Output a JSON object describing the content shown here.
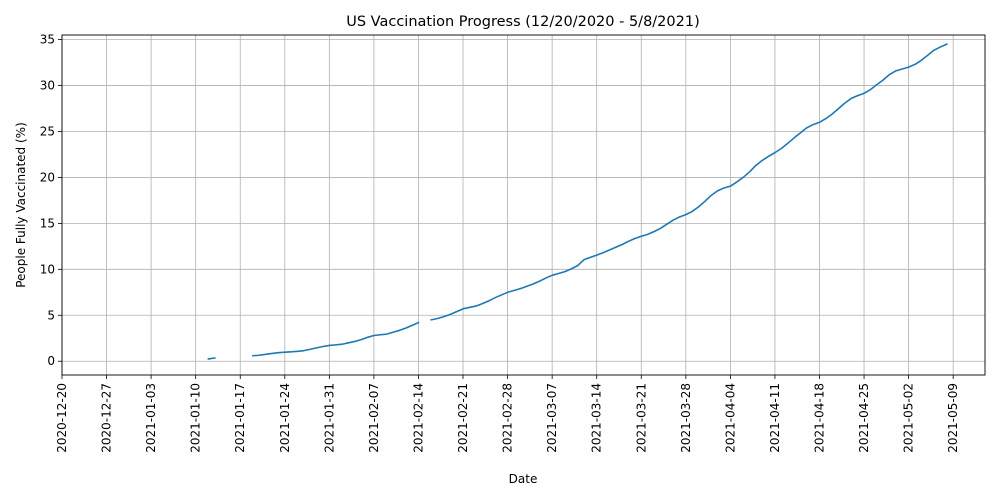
{
  "chart_data": {
    "type": "line",
    "title": "US Vaccination Progress (12/20/2020 - 5/8/2021)",
    "xlabel": "Date",
    "ylabel": "People Fully Vaccinated (%)",
    "xlim": [
      "2020-12-20",
      "2021-05-14"
    ],
    "ylim": [
      -1.5,
      35.5
    ],
    "grid": true,
    "line_color": "#1f77b4",
    "x_ticks": [
      "2020-12-20",
      "2020-12-27",
      "2021-01-03",
      "2021-01-10",
      "2021-01-17",
      "2021-01-24",
      "2021-01-31",
      "2021-02-07",
      "2021-02-14",
      "2021-02-21",
      "2021-02-28",
      "2021-03-07",
      "2021-03-14",
      "2021-03-21",
      "2021-03-28",
      "2021-04-04",
      "2021-04-11",
      "2021-04-18",
      "2021-04-25",
      "2021-05-02",
      "2021-05-09"
    ],
    "y_ticks": [
      0,
      5,
      10,
      15,
      20,
      25,
      30,
      35
    ],
    "series": [
      {
        "segments": [
          {
            "x": [
              "2021-01-12",
              "2021-01-13"
            ],
            "y": [
              0.25,
              0.35
            ]
          },
          {
            "x": [
              "2021-01-19",
              "2021-01-20",
              "2021-01-21",
              "2021-01-22",
              "2021-01-23",
              "2021-01-24",
              "2021-01-25",
              "2021-01-26",
              "2021-01-27",
              "2021-01-28",
              "2021-01-29",
              "2021-01-30",
              "2021-01-31",
              "2021-02-01",
              "2021-02-02",
              "2021-02-03",
              "2021-02-04",
              "2021-02-05",
              "2021-02-06",
              "2021-02-07",
              "2021-02-08",
              "2021-02-09",
              "2021-02-10",
              "2021-02-11",
              "2021-02-12",
              "2021-02-13",
              "2021-02-14"
            ],
            "y": [
              0.6,
              0.65,
              0.75,
              0.85,
              0.93,
              0.98,
              1.02,
              1.08,
              1.15,
              1.3,
              1.45,
              1.6,
              1.72,
              1.78,
              1.85,
              2.0,
              2.15,
              2.35,
              2.6,
              2.8,
              2.88,
              2.95,
              3.15,
              3.35,
              3.6,
              3.9,
              4.2
            ]
          },
          {
            "x": [
              "2021-02-16",
              "2021-02-17",
              "2021-02-18",
              "2021-02-19",
              "2021-02-20",
              "2021-02-21",
              "2021-02-22",
              "2021-02-23",
              "2021-02-24",
              "2021-02-25",
              "2021-02-26",
              "2021-02-27",
              "2021-02-28",
              "2021-03-01",
              "2021-03-02",
              "2021-03-03",
              "2021-03-04",
              "2021-03-05",
              "2021-03-06",
              "2021-03-07",
              "2021-03-08",
              "2021-03-09",
              "2021-03-10",
              "2021-03-11",
              "2021-03-12",
              "2021-03-13",
              "2021-03-14",
              "2021-03-15",
              "2021-03-16",
              "2021-03-17",
              "2021-03-18",
              "2021-03-19",
              "2021-03-20",
              "2021-03-21",
              "2021-03-22",
              "2021-03-23",
              "2021-03-24",
              "2021-03-25",
              "2021-03-26",
              "2021-03-27",
              "2021-03-28",
              "2021-03-29",
              "2021-03-30",
              "2021-03-31",
              "2021-04-01",
              "2021-04-02",
              "2021-04-03",
              "2021-04-04",
              "2021-04-05",
              "2021-04-06",
              "2021-04-07",
              "2021-04-08",
              "2021-04-09",
              "2021-04-10",
              "2021-04-11",
              "2021-04-12",
              "2021-04-13",
              "2021-04-14",
              "2021-04-15",
              "2021-04-16",
              "2021-04-17",
              "2021-04-18",
              "2021-04-19",
              "2021-04-20",
              "2021-04-21",
              "2021-04-22",
              "2021-04-23",
              "2021-04-24",
              "2021-04-25",
              "2021-04-26",
              "2021-04-27",
              "2021-04-28",
              "2021-04-29",
              "2021-04-30",
              "2021-05-01",
              "2021-05-02",
              "2021-05-03",
              "2021-05-04",
              "2021-05-05",
              "2021-05-06",
              "2021-05-07",
              "2021-05-08"
            ],
            "y": [
              4.5,
              4.65,
              4.85,
              5.1,
              5.4,
              5.7,
              5.85,
              6.0,
              6.25,
              6.55,
              6.9,
              7.2,
              7.5,
              7.7,
              7.9,
              8.15,
              8.4,
              8.7,
              9.05,
              9.35,
              9.55,
              9.75,
              10.05,
              10.4,
              11.05,
              11.3,
              11.55,
              11.8,
              12.1,
              12.4,
              12.7,
              13.05,
              13.35,
              13.6,
              13.8,
              14.1,
              14.45,
              14.9,
              15.35,
              15.7,
              15.95,
              16.3,
              16.8,
              17.4,
              18.05,
              18.55,
              18.85,
              19.05,
              19.5,
              20.0,
              20.6,
              21.3,
              21.85,
              22.3,
              22.7,
              23.15,
              23.7,
              24.3,
              24.85,
              25.4,
              25.75,
              26.0,
              26.4,
              26.9,
              27.5,
              28.1,
              28.6,
              28.9,
              29.15,
              29.55,
              30.1,
              30.6,
              31.2,
              31.6,
              31.8,
              32.0,
              32.3,
              32.75,
              33.3,
              33.85,
              34.2,
              34.5
            ]
          }
        ]
      }
    ]
  }
}
